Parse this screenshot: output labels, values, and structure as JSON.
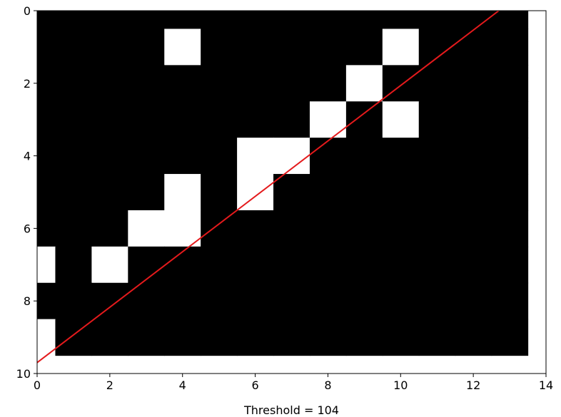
{
  "chart_data": {
    "type": "heatmap",
    "title": "",
    "xlabel": "Threshold = 104",
    "ylabel": "",
    "xlim": [
      0,
      14
    ],
    "ylim": [
      10,
      0
    ],
    "xticks": [
      "0",
      "2",
      "4",
      "6",
      "8",
      "10",
      "12",
      "14"
    ],
    "yticks": [
      "0",
      "2",
      "4",
      "6",
      "8",
      "10"
    ],
    "grid": false,
    "legend": "none",
    "image_extent": {
      "x": [
        -0.5,
        13.5
      ],
      "y": [
        9.5,
        -0.5
      ]
    },
    "colors": {
      "low": "#000000",
      "high": "#ffffff",
      "line": "#e41a1c"
    },
    "matrix": [
      [
        0,
        0,
        0,
        0,
        0,
        0,
        0,
        0,
        0,
        0,
        0,
        0,
        0,
        0
      ],
      [
        0,
        0,
        0,
        0,
        1,
        0,
        0,
        0,
        0,
        0,
        1,
        0,
        0,
        0
      ],
      [
        0,
        0,
        0,
        0,
        0,
        0,
        0,
        0,
        0,
        1,
        0,
        0,
        0,
        0
      ],
      [
        0,
        0,
        0,
        0,
        0,
        0,
        0,
        0,
        1,
        0,
        1,
        0,
        0,
        0
      ],
      [
        0,
        0,
        0,
        0,
        0,
        0,
        1,
        1,
        0,
        0,
        0,
        0,
        0,
        0
      ],
      [
        0,
        0,
        0,
        0,
        1,
        0,
        1,
        0,
        0,
        0,
        0,
        0,
        0,
        0
      ],
      [
        0,
        0,
        0,
        1,
        1,
        0,
        0,
        0,
        0,
        0,
        0,
        0,
        0,
        0
      ],
      [
        1,
        0,
        1,
        0,
        0,
        0,
        0,
        0,
        0,
        0,
        0,
        0,
        0,
        0
      ],
      [
        0,
        0,
        0,
        0,
        0,
        0,
        0,
        0,
        0,
        0,
        0,
        0,
        0,
        0
      ],
      [
        1,
        0,
        0,
        0,
        0,
        0,
        0,
        0,
        0,
        0,
        0,
        0,
        0,
        0
      ]
    ],
    "line": {
      "x": [
        0,
        12.7
      ],
      "y": [
        9.7,
        0
      ]
    }
  }
}
